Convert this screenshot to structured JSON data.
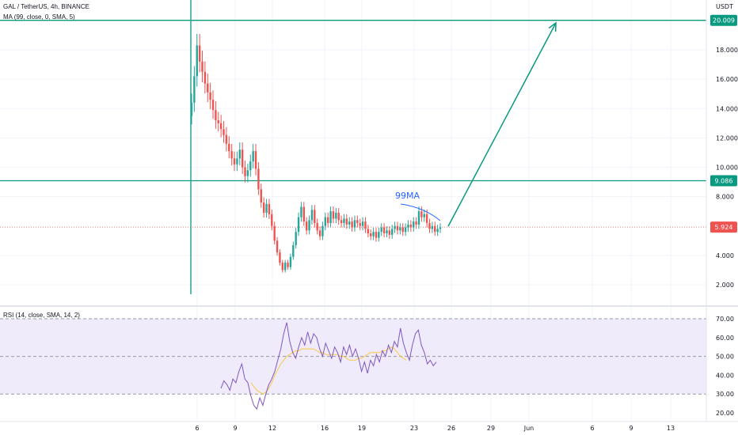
{
  "header": {
    "symbol_line": "GAL / TetherUS, 4h, BINANCE",
    "ma_line": "MA (99, close, 0, SMA, 5)",
    "rsi_line": "RSI (14, close, SMA, 14, 2)",
    "currency": "USDT"
  },
  "annotation": {
    "text": "99MA"
  },
  "colors": {
    "up": "#26a69a",
    "down": "#ef5350",
    "level_line": "#089981",
    "arrow": "#089981",
    "ma_annotation": "#2962ff",
    "rsi_line": "#7e57c2",
    "rsi_ma": "#f7c948",
    "rsi_band": "#f0ebfa",
    "last_price": "#ef5350"
  },
  "chart_data": [
    {
      "type": "candlestick",
      "ylabel": "USDT",
      "ylim": [
        0.6,
        21.0
      ],
      "price_ticks": [
        2.0,
        4.0,
        8.0,
        10.0,
        12.0,
        14.0,
        16.0,
        18.0
      ],
      "price_tick_labels": [
        "2.000",
        "4.000",
        "8.000",
        "10.000",
        "12.000",
        "14.000",
        "16.000",
        "18.000"
      ],
      "x_ticks": [
        "6",
        "9",
        "12",
        "16",
        "19",
        "23",
        "26",
        "29",
        "Jun",
        "6",
        "9",
        "13"
      ],
      "price_labels": [
        {
          "value": 20.009,
          "label": "20.009",
          "kind": "level"
        },
        {
          "value": 9.086,
          "label": "9.086",
          "kind": "level"
        },
        {
          "value": 5.924,
          "label": "5.924",
          "kind": "last"
        }
      ],
      "candles_close": [
        14.4,
        16.2,
        18.3,
        17.2,
        16.5,
        15.7,
        15.1,
        14.6,
        13.9,
        13.2,
        13.0,
        12.6,
        12.2,
        11.6,
        11.1,
        10.6,
        10.2,
        10.6,
        11.2,
        10.0,
        9.4,
        9.8,
        10.4,
        11.1,
        9.9,
        8.5,
        7.6,
        6.9,
        7.5,
        6.8,
        6.0,
        5.0,
        4.2,
        3.5,
        3.0,
        3.5,
        3.2,
        3.9,
        4.7,
        5.6,
        6.6,
        7.3,
        6.3,
        5.7,
        6.4,
        7.1,
        6.2,
        5.7,
        5.3,
        6.0,
        6.6,
        6.2,
        7.0,
        6.5,
        6.9,
        6.4,
        6.2,
        6.5,
        6.1,
        6.3,
        5.9,
        6.4,
        6.2,
        6.0,
        6.3,
        5.8,
        5.5,
        5.3,
        5.6,
        5.2,
        5.6,
        5.9,
        5.5,
        5.7,
        5.4,
        5.8,
        6.0,
        5.7,
        5.9,
        5.6,
        5.9,
        6.1,
        5.9,
        6.3,
        6.1,
        7.0,
        6.6,
        6.8,
        6.2,
        5.8,
        6.0,
        5.6,
        5.8,
        5.9
      ],
      "levels": [
        20.009,
        9.086
      ]
    },
    {
      "type": "line",
      "title": "RSI (14, close, SMA, 14, 2)",
      "ylim": [
        17,
        72
      ],
      "y_ticks": [
        20,
        30,
        40,
        50,
        60,
        70
      ],
      "y_tick_labels": [
        "20.00",
        "30.00",
        "40.00",
        "50.00",
        "60.00",
        "70.00"
      ],
      "band": [
        30,
        70
      ],
      "series": [
        {
          "values": [
            33,
            37,
            35,
            32,
            38,
            36,
            42,
            46,
            38,
            36,
            29,
            24,
            22,
            28,
            24,
            30,
            35,
            38,
            42,
            48,
            54,
            62,
            68,
            58,
            52,
            49,
            55,
            60,
            56,
            63,
            57,
            62,
            60,
            54,
            50,
            57,
            53,
            49,
            55,
            52,
            47,
            55,
            51,
            56,
            50,
            54,
            49,
            42,
            47,
            41,
            48,
            45,
            51,
            47,
            53,
            50,
            56,
            52,
            58,
            55,
            65,
            57,
            52,
            48,
            56,
            62,
            64,
            56,
            52,
            46,
            48,
            45,
            47
          ]
        },
        {
          "values": [
            null,
            null,
            null,
            null,
            null,
            null,
            null,
            null,
            null,
            null,
            36,
            34,
            32,
            31,
            30,
            31,
            33,
            36,
            40,
            43,
            46,
            48,
            50,
            51,
            52,
            53,
            53,
            54,
            54,
            54,
            54,
            54,
            53,
            52,
            52,
            51,
            51,
            51,
            51,
            51,
            50,
            50,
            49,
            48,
            48,
            48,
            49,
            49,
            50,
            51,
            52,
            52,
            52,
            52,
            53,
            53,
            54,
            55,
            54,
            52,
            50,
            49,
            48,
            null,
            null,
            null,
            null,
            null,
            null,
            null,
            null,
            null,
            null
          ]
        }
      ]
    }
  ]
}
